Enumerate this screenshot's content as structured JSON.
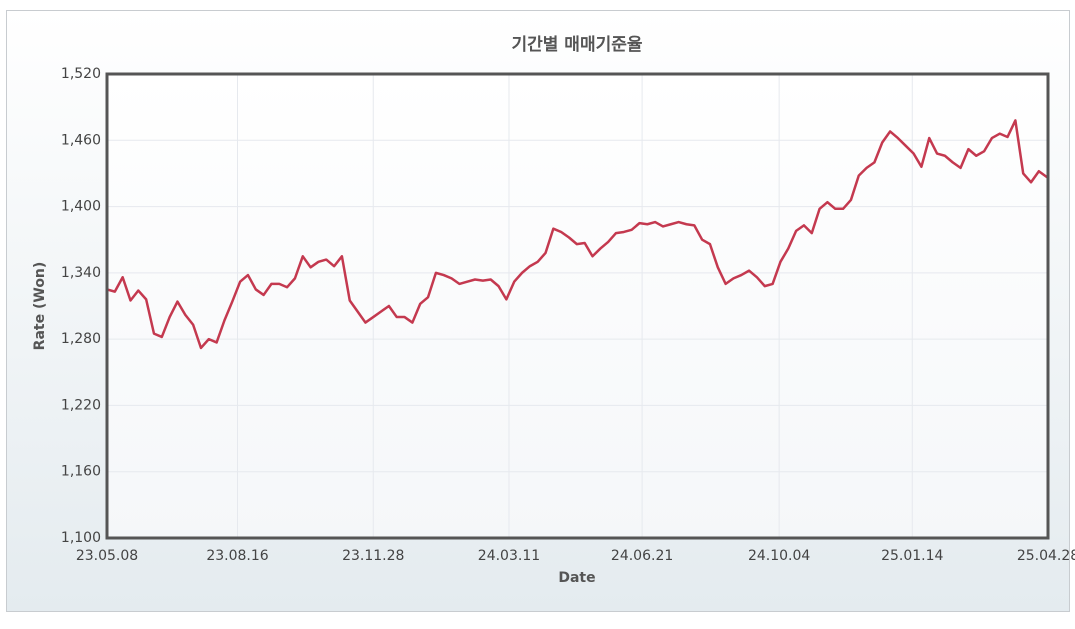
{
  "chart_data": {
    "type": "line",
    "title": "기간별 매매기준율",
    "x_label": "Date",
    "y_label": "Rate (Won)",
    "color": "#c4394f",
    "grid": true,
    "xlim": [
      "23.05.08",
      "25.04.28"
    ],
    "xticks": [
      "23.05.08",
      "23.08.16",
      "23.11.28",
      "24.03.11",
      "24.06.21",
      "24.10.04",
      "25.01.14",
      "25.04.28"
    ],
    "ylim": [
      1100,
      1520
    ],
    "yticks": [
      {
        "value": 1100,
        "label": "1,100"
      },
      {
        "value": 1160,
        "label": "1,160"
      },
      {
        "value": 1220,
        "label": "1,220"
      },
      {
        "value": 1280,
        "label": "1,280"
      },
      {
        "value": 1340,
        "label": "1,340"
      },
      {
        "value": 1400,
        "label": "1,400"
      },
      {
        "value": 1460,
        "label": "1,460"
      },
      {
        "value": 1520,
        "label": "1,520"
      }
    ],
    "x": [
      "23.05.08",
      "23.05.14",
      "23.05.20",
      "23.05.26",
      "23.06.01",
      "23.06.07",
      "23.06.13",
      "23.06.19",
      "23.06.25",
      "23.07.01",
      "23.07.07",
      "23.07.13",
      "23.07.19",
      "23.07.25",
      "23.07.31",
      "23.08.06",
      "23.08.12",
      "23.08.18",
      "23.08.24",
      "23.08.30",
      "23.09.05",
      "23.09.11",
      "23.09.17",
      "23.09.23",
      "23.09.29",
      "23.10.05",
      "23.10.11",
      "23.10.17",
      "23.10.23",
      "23.10.29",
      "23.11.04",
      "23.11.10",
      "23.11.16",
      "23.11.22",
      "23.11.28",
      "23.12.04",
      "23.12.10",
      "23.12.16",
      "23.12.22",
      "23.12.28",
      "24.01.03",
      "24.01.09",
      "24.01.15",
      "24.01.21",
      "24.01.27",
      "24.02.02",
      "24.02.08",
      "24.02.14",
      "24.02.20",
      "24.02.26",
      "24.03.03",
      "24.03.09",
      "24.03.15",
      "24.03.21",
      "24.03.27",
      "24.04.02",
      "24.04.08",
      "24.04.14",
      "24.04.20",
      "24.04.26",
      "24.05.02",
      "24.05.08",
      "24.05.14",
      "24.05.20",
      "24.05.26",
      "24.06.01",
      "24.06.07",
      "24.06.13",
      "24.06.19",
      "24.06.25",
      "24.07.01",
      "24.07.07",
      "24.07.13",
      "24.07.19",
      "24.07.25",
      "24.07.31",
      "24.08.06",
      "24.08.12",
      "24.08.18",
      "24.08.24",
      "24.08.30",
      "24.09.05",
      "24.09.11",
      "24.09.17",
      "24.09.23",
      "24.09.29",
      "24.10.05",
      "24.10.11",
      "24.10.17",
      "24.10.23",
      "24.10.29",
      "24.11.04",
      "24.11.10",
      "24.11.16",
      "24.11.22",
      "24.11.28",
      "24.12.04",
      "24.12.10",
      "24.12.16",
      "24.12.22",
      "24.12.28",
      "25.01.03",
      "25.01.09",
      "25.01.15",
      "25.01.21",
      "25.01.27",
      "25.02.02",
      "25.02.08",
      "25.02.14",
      "25.02.20",
      "25.02.26",
      "25.03.04",
      "25.03.10",
      "25.03.16",
      "25.03.22",
      "25.03.28",
      "25.04.03",
      "25.04.09",
      "25.04.15",
      "25.04.21",
      "25.04.28"
    ],
    "values": [
      1325,
      1323,
      1336,
      1315,
      1324,
      1316,
      1285,
      1282,
      1300,
      1314,
      1302,
      1293,
      1272,
      1280,
      1277,
      1297,
      1314,
      1332,
      1338,
      1325,
      1320,
      1330,
      1330,
      1327,
      1335,
      1355,
      1345,
      1350,
      1352,
      1346,
      1355,
      1315,
      1305,
      1295,
      1300,
      1305,
      1310,
      1300,
      1300,
      1295,
      1312,
      1318,
      1340,
      1338,
      1335,
      1330,
      1332,
      1334,
      1333,
      1334,
      1328,
      1316,
      1332,
      1340,
      1346,
      1350,
      1358,
      1380,
      1377,
      1372,
      1366,
      1367,
      1355,
      1362,
      1368,
      1376,
      1377,
      1379,
      1385,
      1384,
      1386,
      1382,
      1384,
      1386,
      1384,
      1383,
      1370,
      1366,
      1345,
      1330,
      1335,
      1338,
      1342,
      1336,
      1328,
      1330,
      1350,
      1362,
      1378,
      1383,
      1376,
      1398,
      1404,
      1398,
      1398,
      1406,
      1428,
      1435,
      1440,
      1458,
      1468,
      1462,
      1455,
      1448,
      1436,
      1462,
      1448,
      1446,
      1440,
      1435,
      1452,
      1446,
      1450,
      1462,
      1466,
      1463,
      1478,
      1430,
      1422,
      1432,
      1426
    ]
  }
}
